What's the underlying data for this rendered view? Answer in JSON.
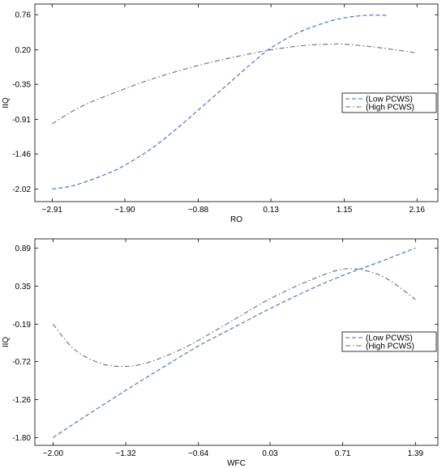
{
  "chart_data": [
    {
      "type": "line",
      "xlabel": "RO",
      "ylabel": "IIQ",
      "xticks": [
        -2.91,
        -1.9,
        -0.88,
        0.13,
        1.15,
        2.16
      ],
      "xtick_labels": [
        "−2.91",
        "−1.90",
        "−0.88",
        "0.13",
        "1.15",
        "2.16"
      ],
      "yticks": [
        -2.02,
        -1.46,
        -0.91,
        -0.35,
        0.2,
        0.76
      ],
      "ytick_labels": [
        "-2.02",
        "-1.46",
        "-0.91",
        "-0.35",
        "0.20",
        "0.76"
      ],
      "xlim": [
        -3.15,
        2.45
      ],
      "ylim": [
        -2.22,
        0.93
      ],
      "legend_position": "right",
      "series": [
        {
          "name": "(Low PCWS)",
          "color": "#4a63c8",
          "dash": "dashed",
          "x": [
            -2.91,
            -2.6,
            -2.2,
            -1.9,
            -1.5,
            -1.1,
            -0.88,
            -0.5,
            -0.1,
            0.13,
            0.5,
            0.9,
            1.15,
            1.45,
            1.74
          ],
          "y": [
            -2.02,
            -1.96,
            -1.8,
            -1.64,
            -1.35,
            -0.98,
            -0.76,
            -0.38,
            0.02,
            0.23,
            0.47,
            0.64,
            0.71,
            0.75,
            0.75
          ]
        },
        {
          "name": "(High PCWS)",
          "color": "#6e6e6e",
          "dash": "dashdot",
          "x": [
            -2.91,
            -2.5,
            -1.9,
            -1.4,
            -0.88,
            -0.4,
            0.13,
            0.6,
            0.95,
            1.15,
            1.6,
            2.16
          ],
          "y": [
            -0.98,
            -0.7,
            -0.42,
            -0.22,
            -0.05,
            0.08,
            0.2,
            0.27,
            0.29,
            0.29,
            0.24,
            0.15
          ]
        }
      ]
    },
    {
      "type": "line",
      "xlabel": "WFC",
      "ylabel": "IIQ",
      "xticks": [
        -2.0,
        -1.32,
        -0.64,
        0.03,
        0.71,
        1.39
      ],
      "xtick_labels": [
        "−2.00",
        "−1.32",
        "−0.64",
        "0.03",
        "0.71",
        "1.39"
      ],
      "yticks": [
        -1.8,
        -1.26,
        -0.72,
        -0.19,
        0.35,
        0.89
      ],
      "ytick_labels": [
        "-1.80",
        "-1.26",
        "-0.72",
        "-0.19",
        "0.35",
        "0.89"
      ],
      "xlim": [
        -2.17,
        1.6
      ],
      "ylim": [
        -1.91,
        1.02
      ],
      "legend_position": "right",
      "series": [
        {
          "name": "(Low PCWS)",
          "color": "#4a63c8",
          "dash": "dashed",
          "x": [
            -2.0,
            -1.7,
            -1.32,
            -1.0,
            -0.64,
            -0.3,
            0.03,
            0.4,
            0.71,
            1.05,
            1.39
          ],
          "y": [
            -1.8,
            -1.5,
            -1.13,
            -0.83,
            -0.5,
            -0.23,
            0.03,
            0.3,
            0.5,
            0.69,
            0.89
          ]
        },
        {
          "name": "(High PCWS)",
          "color": "#6e6e6e",
          "dash": "dashdot",
          "x": [
            -2.0,
            -1.8,
            -1.55,
            -1.32,
            -1.1,
            -0.85,
            -0.64,
            -0.3,
            0.03,
            0.4,
            0.71,
            0.95,
            1.15,
            1.39
          ],
          "y": [
            -0.19,
            -0.55,
            -0.75,
            -0.79,
            -0.73,
            -0.58,
            -0.42,
            -0.12,
            0.17,
            0.43,
            0.59,
            0.56,
            0.43,
            0.16
          ]
        }
      ]
    }
  ]
}
